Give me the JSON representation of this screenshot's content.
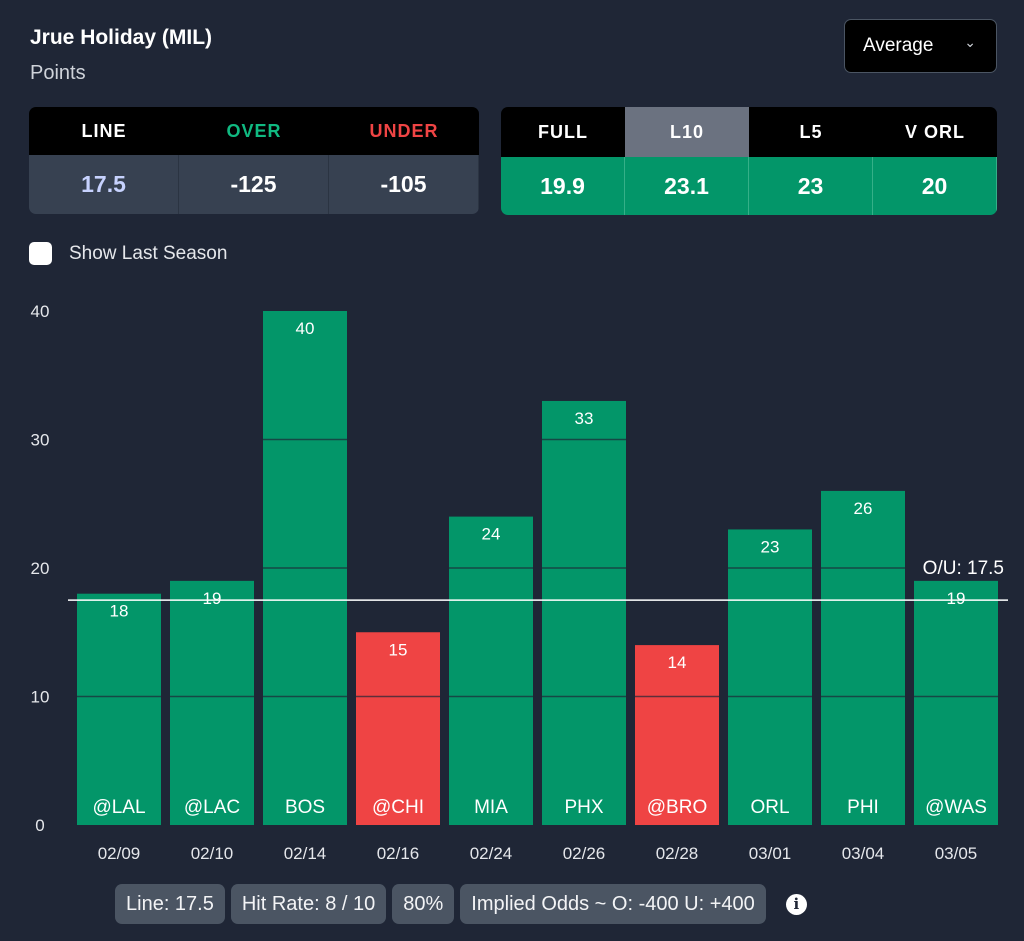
{
  "header": {
    "title": "Jrue Holiday (MIL)",
    "subtitle": "Points",
    "dropdown": "Average"
  },
  "odds": {
    "headers": [
      "LINE",
      "OVER",
      "UNDER"
    ],
    "values": [
      "17.5",
      "-125",
      "-105"
    ],
    "colors": [
      "#ffffff",
      "#10b981",
      "#ef4444"
    ],
    "line_value_color": "#c7d2fe"
  },
  "averages": {
    "headers": [
      "FULL",
      "L10",
      "L5",
      "V ORL"
    ],
    "values": [
      "19.9",
      "23.1",
      "23",
      "20"
    ],
    "selected": "L10"
  },
  "show_last_season": {
    "label": "Show Last Season",
    "checked": false
  },
  "chart_data": {
    "type": "bar",
    "categories": [
      "02/09",
      "02/10",
      "02/14",
      "02/16",
      "02/24",
      "02/26",
      "02/28",
      "03/01",
      "03/04",
      "03/05"
    ],
    "opponents": [
      "@LAL",
      "@LAC",
      "BOS",
      "@CHI",
      "MIA",
      "PHX",
      "@BRO",
      "ORL",
      "PHI",
      "@WAS"
    ],
    "values": [
      18,
      19,
      40,
      15,
      24,
      33,
      14,
      23,
      26,
      19
    ],
    "yticks": [
      0,
      10,
      20,
      30,
      40
    ],
    "ylim": [
      0,
      40
    ],
    "line": {
      "value": 17.5,
      "label": "O/U: 17.5"
    },
    "colors": {
      "over": "#039669",
      "under": "#ef4444"
    },
    "grid": true
  },
  "summary": {
    "line": "Line: 17.5",
    "hit_rate": "Hit Rate: 8 / 10",
    "pct": "80%",
    "implied": "Implied Odds ~ O: -400 U: +400"
  }
}
